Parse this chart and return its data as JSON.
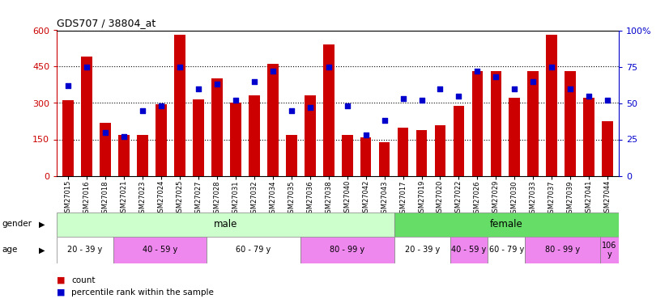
{
  "title": "GDS707 / 38804_at",
  "samples": [
    "GSM27015",
    "GSM27016",
    "GSM27018",
    "GSM27021",
    "GSM27023",
    "GSM27024",
    "GSM27025",
    "GSM27027",
    "GSM27028",
    "GSM27031",
    "GSM27032",
    "GSM27034",
    "GSM27035",
    "GSM27036",
    "GSM27038",
    "GSM27040",
    "GSM27042",
    "GSM27043",
    "GSM27017",
    "GSM27019",
    "GSM27020",
    "GSM27022",
    "GSM27026",
    "GSM27029",
    "GSM27030",
    "GSM27033",
    "GSM27037",
    "GSM27039",
    "GSM27041",
    "GSM27044"
  ],
  "counts": [
    310,
    490,
    220,
    170,
    170,
    295,
    580,
    315,
    400,
    300,
    330,
    460,
    170,
    330,
    540,
    170,
    160,
    140,
    200,
    190,
    210,
    290,
    430,
    430,
    320,
    430,
    580,
    430,
    320,
    225
  ],
  "percentiles": [
    62,
    75,
    30,
    27,
    45,
    48,
    75,
    60,
    63,
    52,
    65,
    72,
    45,
    47,
    75,
    48,
    28,
    38,
    53,
    52,
    60,
    55,
    72,
    68,
    60,
    65,
    75,
    60,
    55,
    52
  ],
  "bar_color": "#cc0000",
  "dot_color": "#0000cc",
  "ylim_left": [
    0,
    600
  ],
  "ylim_right": [
    0,
    100
  ],
  "yticks_left": [
    0,
    150,
    300,
    450,
    600
  ],
  "ytick_labels_left": [
    "0",
    "150",
    "300",
    "450",
    "600"
  ],
  "yticks_right": [
    0,
    25,
    50,
    75,
    100
  ],
  "ytick_labels_right": [
    "0",
    "25",
    "50",
    "75",
    "100%"
  ],
  "male_color": "#ccffcc",
  "female_color": "#66dd66",
  "age_white": "#ffffff",
  "age_violet": "#ee88ee",
  "male_ages": [
    {
      "label": "20 - 39 y",
      "start": 0,
      "end": 3,
      "color": "#ffffff"
    },
    {
      "label": "40 - 59 y",
      "start": 3,
      "end": 8,
      "color": "#ee88ee"
    },
    {
      "label": "60 - 79 y",
      "start": 8,
      "end": 13,
      "color": "#ffffff"
    },
    {
      "label": "80 - 99 y",
      "start": 13,
      "end": 18,
      "color": "#ee88ee"
    }
  ],
  "female_ages": [
    {
      "label": "20 - 39 y",
      "start": 18,
      "end": 21,
      "color": "#ffffff"
    },
    {
      "label": "40 - 59 y",
      "start": 21,
      "end": 23,
      "color": "#ee88ee"
    },
    {
      "label": "60 - 79 y",
      "start": 23,
      "end": 25,
      "color": "#ffffff"
    },
    {
      "label": "80 - 99 y",
      "start": 25,
      "end": 29,
      "color": "#ee88ee"
    },
    {
      "label": "106\ny",
      "start": 29,
      "end": 30,
      "color": "#ee88ee"
    }
  ],
  "n_male": 18,
  "n_total": 30,
  "left_axis_color": "#cc0000",
  "right_axis_color": "#0000cc",
  "background_color": "#ffffff"
}
